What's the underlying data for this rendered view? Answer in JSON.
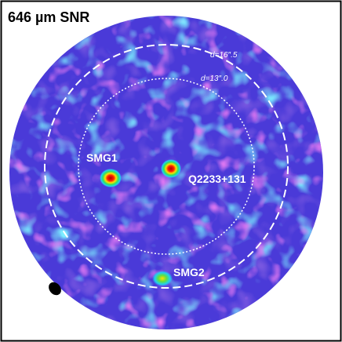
{
  "header": {
    "title": "646 µm SNR"
  },
  "annotations": {
    "outer_circle": "d=16″.5",
    "inner_circle": "d=13″.0"
  },
  "sources": [
    {
      "label": "SMG1"
    },
    {
      "label": "Q2233+131"
    },
    {
      "label": "SMG2"
    }
  ]
}
